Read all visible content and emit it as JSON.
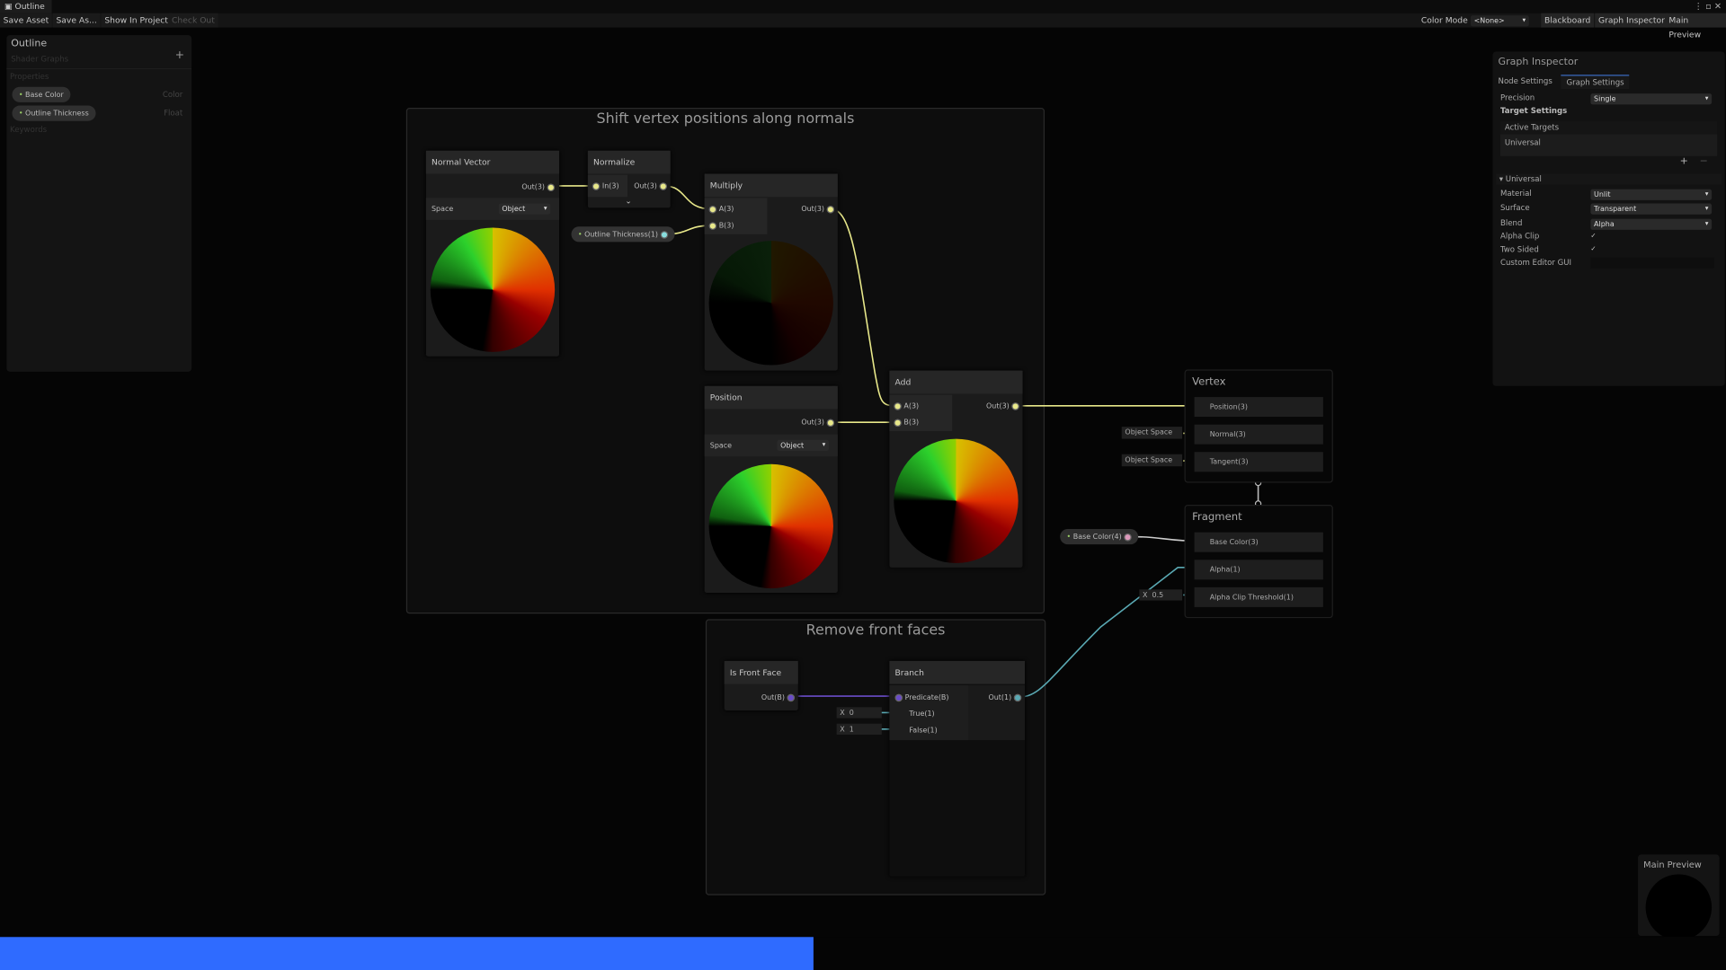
{
  "window": {
    "tab": "Outline"
  },
  "toolbar": {
    "save_asset": "Save Asset",
    "save_as": "Save As...",
    "show_in_project": "Show In Project",
    "check_out": "Check Out",
    "color_mode_label": "Color Mode",
    "color_mode_value": "<None>",
    "blackboard": "Blackboard",
    "graph_inspector": "Graph Inspector",
    "main_preview": "Main Preview"
  },
  "blackboard": {
    "title": "Outline",
    "subtitle": "Shader Graphs",
    "add": "+",
    "properties_label": "Properties",
    "properties": [
      {
        "name": "Base Color",
        "type": "Color"
      },
      {
        "name": "Outline Thickness",
        "type": "Float"
      }
    ],
    "keywords_label": "Keywords"
  },
  "groups": [
    {
      "title": "Shift vertex positions along normals"
    },
    {
      "title": "Remove front faces"
    }
  ],
  "nodes": {
    "normal_vector": {
      "title": "Normal Vector",
      "out": "Out(3)",
      "space_label": "Space",
      "space_value": "Object"
    },
    "normalize": {
      "title": "Normalize",
      "in": "In(3)",
      "out": "Out(3)"
    },
    "outline_thickness": {
      "label": "Outline Thickness(1)"
    },
    "multiply": {
      "title": "Multiply",
      "a": "A(3)",
      "b": "B(3)",
      "out": "Out(3)"
    },
    "position": {
      "title": "Position",
      "out": "Out(3)",
      "space_label": "Space",
      "space_value": "Object"
    },
    "add": {
      "title": "Add",
      "a": "A(3)",
      "b": "B(3)",
      "out": "Out(3)"
    },
    "is_front_face": {
      "title": "Is Front Face",
      "out": "Out(B)"
    },
    "branch": {
      "title": "Branch",
      "predicate": "Predicate(B)",
      "true": "True(1)",
      "false": "False(1)",
      "out": "Out(1)",
      "true_x": "X",
      "true_value": "0",
      "false_x": "X",
      "false_value": "1"
    },
    "base_color": {
      "label": "Base Color(4)"
    }
  },
  "master": {
    "vertex": {
      "title": "Vertex",
      "slots": [
        "Position(3)",
        "Normal(3)",
        "Tangent(3)"
      ],
      "normal_space": "Object Space",
      "tangent_space": "Object Space"
    },
    "fragment": {
      "title": "Fragment",
      "slots": [
        "Base Color(3)",
        "Alpha(1)",
        "Alpha Clip Threshold(1)"
      ],
      "threshold_x": "X",
      "threshold_value": "0.5"
    }
  },
  "inspector": {
    "title": "Graph Inspector",
    "tabs": [
      "Node Settings",
      "Graph Settings"
    ],
    "active_tab": "Graph Settings",
    "precision_label": "Precision",
    "precision_value": "Single",
    "target_settings": "Target Settings",
    "active_targets": "Active Targets",
    "target": "Universal",
    "add": "+",
    "remove": "−",
    "section": "Universal",
    "material_label": "Material",
    "material_value": "Unlit",
    "surface_label": "Surface",
    "surface_value": "Transparent",
    "blend_label": "Blend",
    "blend_value": "Alpha",
    "alpha_clip_label": "Alpha Clip",
    "alpha_clip": true,
    "two_sided_label": "Two Sided",
    "two_sided": true,
    "custom_gui_label": "Custom Editor GUI",
    "check": "✓"
  },
  "main_preview": {
    "title": "Main Preview"
  },
  "progress": {
    "fraction": 0.471,
    "color": "#2f6bff"
  }
}
